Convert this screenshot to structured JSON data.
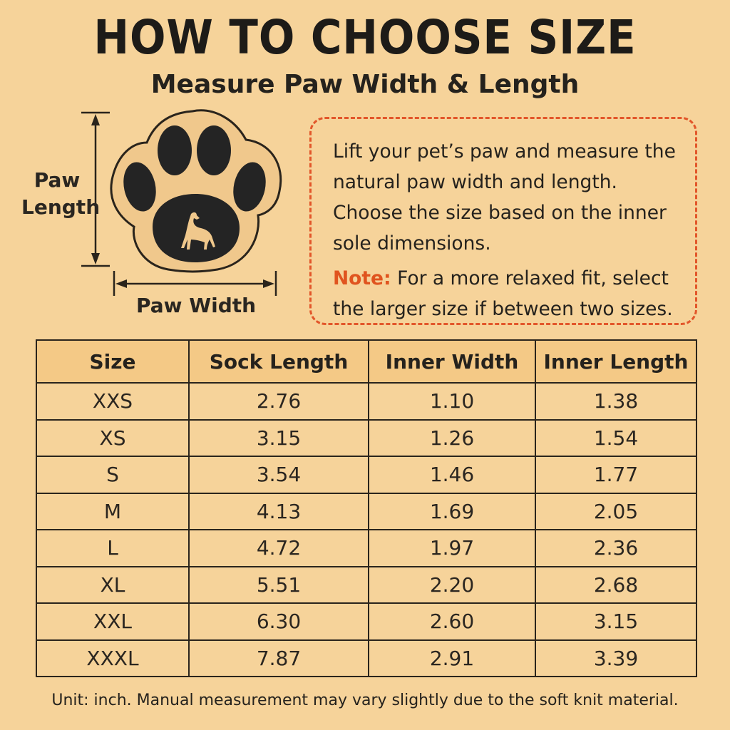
{
  "header": {
    "title": "HOW TO CHOOSE SIZE",
    "subtitle": "Measure Paw Width & Length"
  },
  "diagram": {
    "length_label_line1": "Paw",
    "length_label_line2": "Length",
    "width_label": "Paw Width",
    "icons": [
      "paw-print-icon",
      "dog-silhouette-icon",
      "vertical-arrow-icon",
      "horizontal-arrow-icon"
    ]
  },
  "instructions": {
    "text": "Lift your pet’s paw and measure the natural paw width and length. Choose the size based on the inner sole dimensions.",
    "note_label": "Note:",
    "note_text": "For a more relaxed fit, select the larger size if between two sizes."
  },
  "size_table": {
    "headers": [
      "Size",
      "Sock Length",
      "Inner Width",
      "Inner Length"
    ],
    "rows": [
      [
        "XXS",
        "2.76",
        "1.10",
        "1.38"
      ],
      [
        "XS",
        "3.15",
        "1.26",
        "1.54"
      ],
      [
        "S",
        "3.54",
        "1.46",
        "1.77"
      ],
      [
        "M",
        "4.13",
        "1.69",
        "2.05"
      ],
      [
        "L",
        "4.72",
        "1.97",
        "2.36"
      ],
      [
        "XL",
        "5.51",
        "2.20",
        "2.68"
      ],
      [
        "XXL",
        "6.30",
        "2.60",
        "3.15"
      ],
      [
        "XXXL",
        "7.87",
        "2.91",
        "3.39"
      ]
    ]
  },
  "footnote": "Unit:  inch. Manual measurement may vary slightly due to the soft knit material.",
  "colors": {
    "background": "#f6d39a",
    "header_row": "#f4c986",
    "accent": "#e2562a",
    "ink": "#1f1b16"
  }
}
